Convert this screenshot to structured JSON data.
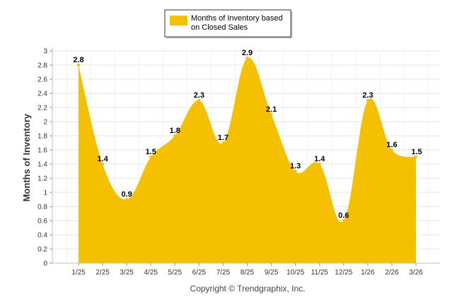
{
  "chart_data": {
    "type": "area",
    "title": "",
    "xlabel": "",
    "ylabel": "Months of Inventory",
    "ylim": [
      0,
      3
    ],
    "y_ticks": [
      "0",
      "0.2",
      "0.4",
      "0.6",
      "0.8",
      "1",
      "1.2",
      "1.4",
      "1.6",
      "1.8",
      "2",
      "2.2",
      "2.4",
      "2.6",
      "2.8",
      "3"
    ],
    "categories": [
      "1/25",
      "2/25",
      "3/25",
      "4/25",
      "5/25",
      "6/25",
      "7/25",
      "8/25",
      "9/25",
      "10/25",
      "11/25",
      "12/25",
      "1/26",
      "2/26",
      "3/26"
    ],
    "series": [
      {
        "name": "Months of Inventory based on Closed Sales",
        "values": [
          2.8,
          1.4,
          0.9,
          1.5,
          1.8,
          2.3,
          1.7,
          2.9,
          2.1,
          1.3,
          1.4,
          0.6,
          2.3,
          1.6,
          1.5
        ],
        "labels": [
          "2.8",
          "1.4",
          "0.9",
          "1.5",
          "1.8",
          "2.3",
          "1.7",
          "2.9",
          "2.1",
          "1.3",
          "1.4",
          "0.6",
          "2.3",
          "1.6",
          "1.5"
        ],
        "color": "#F5C000"
      }
    ],
    "legend": {
      "position": "top-center",
      "lines": [
        "Months of Inventory based",
        "on Closed Sales"
      ]
    },
    "grid": true
  },
  "footer": {
    "credit": "Copyright © Trendgraphix, Inc."
  }
}
